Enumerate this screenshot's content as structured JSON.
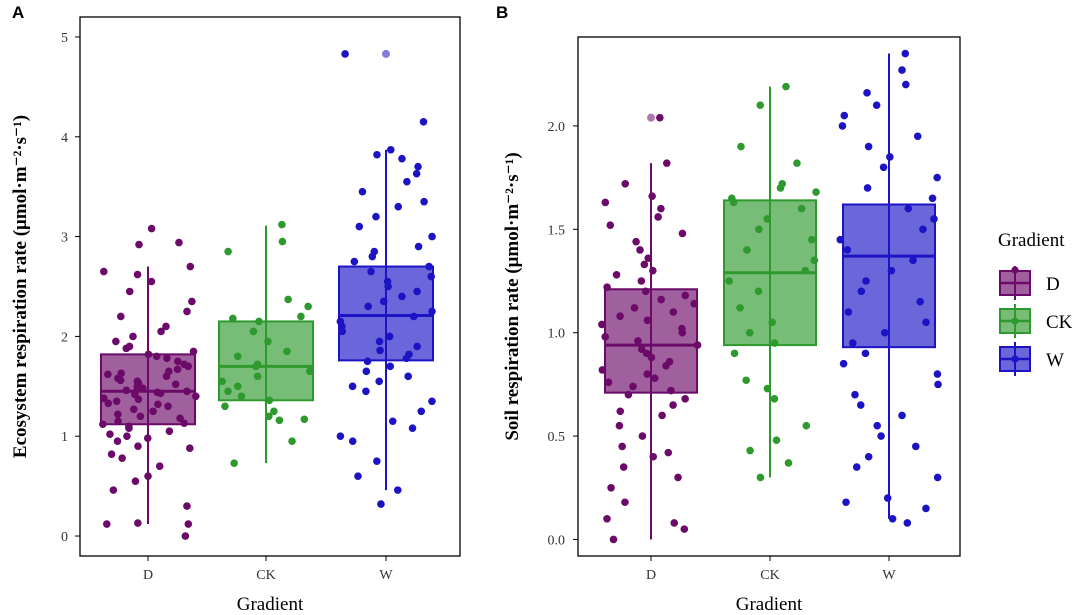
{
  "colors": {
    "D": "#6b0a68",
    "CK": "#2e9a2e",
    "W": "#1c14c4",
    "frame": "#000000",
    "background": "#ffffff"
  },
  "chart_data": [
    {
      "type": "box",
      "panel_label": "A",
      "title": "",
      "xlabel": "Gradient",
      "ylabel": "Ecosystem respiration rate (μmol·m⁻²·s⁻¹)",
      "categories": [
        "D",
        "CK",
        "W"
      ],
      "yticks": [
        0,
        1,
        2,
        3,
        4,
        5
      ],
      "yticklabels": [
        "0",
        "1",
        "2",
        "3",
        "4",
        "5"
      ],
      "ylim": [
        0,
        5
      ],
      "boxes": [
        {
          "group": "D",
          "whisker_low": 0.12,
          "q1": 1.12,
          "median": 1.45,
          "q3": 1.82,
          "whisker_high": 2.7
        },
        {
          "group": "CK",
          "whisker_low": 0.73,
          "q1": 1.36,
          "median": 1.7,
          "q3": 2.15,
          "whisker_high": 3.11
        },
        {
          "group": "W",
          "whisker_low": 0.46,
          "q1": 1.76,
          "median": 2.21,
          "q3": 2.7,
          "whisker_high": 3.87
        }
      ],
      "outliers": [
        {
          "group": "W",
          "y": 4.83
        }
      ],
      "points": {
        "D": [
          0.0,
          0.12,
          0.12,
          0.13,
          0.3,
          0.46,
          0.55,
          0.6,
          0.7,
          0.78,
          0.82,
          0.88,
          0.9,
          0.95,
          0.98,
          1.0,
          1.02,
          1.05,
          1.08,
          1.1,
          1.12,
          1.13,
          1.15,
          1.18,
          1.2,
          1.22,
          1.25,
          1.27,
          1.3,
          1.32,
          1.33,
          1.35,
          1.37,
          1.38,
          1.4,
          1.42,
          1.43,
          1.44,
          1.45,
          1.46,
          1.47,
          1.48,
          1.5,
          1.52,
          1.53,
          1.55,
          1.56,
          1.58,
          1.6,
          1.62,
          1.63,
          1.65,
          1.67,
          1.7,
          1.72,
          1.75,
          1.78,
          1.8,
          1.82,
          1.85,
          1.88,
          1.9,
          1.95,
          2.0,
          2.05,
          2.1,
          2.2,
          2.25,
          2.35,
          2.45,
          2.55,
          2.62,
          2.65,
          2.7,
          2.92,
          2.94,
          3.08
        ],
        "CK": [
          0.73,
          0.95,
          1.16,
          1.17,
          1.2,
          1.25,
          1.3,
          1.36,
          1.4,
          1.45,
          1.5,
          1.55,
          1.6,
          1.65,
          1.7,
          1.72,
          1.8,
          1.85,
          1.95,
          2.05,
          2.15,
          2.18,
          2.2,
          2.3,
          2.37,
          2.85,
          2.95,
          3.12
        ],
        "W": [
          0.32,
          0.46,
          0.6,
          0.75,
          0.95,
          1.0,
          1.08,
          1.15,
          1.25,
          1.35,
          1.45,
          1.5,
          1.55,
          1.6,
          1.65,
          1.7,
          1.75,
          1.78,
          1.82,
          1.86,
          1.9,
          1.95,
          2.0,
          2.05,
          2.1,
          2.15,
          2.2,
          2.25,
          2.3,
          2.35,
          2.4,
          2.45,
          2.5,
          2.55,
          2.6,
          2.65,
          2.7,
          2.75,
          2.8,
          2.85,
          2.9,
          3.0,
          3.1,
          3.2,
          3.3,
          3.35,
          3.45,
          3.55,
          3.63,
          3.7,
          3.78,
          3.82,
          3.87,
          4.15,
          4.83
        ]
      }
    },
    {
      "type": "box",
      "panel_label": "B",
      "title": "",
      "xlabel": "Gradient",
      "ylabel": "Soil respiration rate (μmol·m⁻²·s⁻¹)",
      "categories": [
        "D",
        "CK",
        "W"
      ],
      "yticks": [
        0.0,
        0.5,
        1.0,
        1.5,
        2.0
      ],
      "yticklabels": [
        "0.0",
        "0.5",
        "1.0",
        "1.5",
        "2.0"
      ],
      "ylim": [
        -0.08,
        2.43
      ],
      "boxes": [
        {
          "group": "D",
          "whisker_low": 0.0,
          "q1": 0.71,
          "median": 0.94,
          "q3": 1.21,
          "whisker_high": 1.82
        },
        {
          "group": "CK",
          "whisker_low": 0.3,
          "q1": 0.94,
          "median": 1.29,
          "q3": 1.64,
          "whisker_high": 2.19
        },
        {
          "group": "W",
          "whisker_low": 0.1,
          "q1": 0.93,
          "median": 1.37,
          "q3": 1.62,
          "whisker_high": 2.35
        }
      ],
      "outliers": [
        {
          "group": "D",
          "y": 2.04
        }
      ],
      "points": {
        "D": [
          0.0,
          0.05,
          0.08,
          0.1,
          0.18,
          0.25,
          0.3,
          0.35,
          0.4,
          0.42,
          0.45,
          0.5,
          0.55,
          0.6,
          0.62,
          0.65,
          0.68,
          0.7,
          0.72,
          0.74,
          0.76,
          0.78,
          0.8,
          0.82,
          0.84,
          0.86,
          0.88,
          0.9,
          0.92,
          0.94,
          0.96,
          0.98,
          1.0,
          1.02,
          1.04,
          1.06,
          1.08,
          1.1,
          1.12,
          1.14,
          1.16,
          1.18,
          1.2,
          1.22,
          1.25,
          1.28,
          1.3,
          1.33,
          1.36,
          1.4,
          1.44,
          1.48,
          1.52,
          1.56,
          1.6,
          1.63,
          1.66,
          1.72,
          1.82,
          2.04
        ],
        "CK": [
          0.3,
          0.37,
          0.43,
          0.48,
          0.55,
          0.68,
          0.73,
          0.77,
          0.9,
          0.95,
          1.0,
          1.05,
          1.12,
          1.2,
          1.25,
          1.3,
          1.35,
          1.4,
          1.45,
          1.5,
          1.55,
          1.6,
          1.63,
          1.65,
          1.68,
          1.7,
          1.72,
          1.82,
          1.9,
          2.1,
          2.19
        ],
        "W": [
          0.08,
          0.1,
          0.15,
          0.18,
          0.2,
          0.3,
          0.35,
          0.4,
          0.45,
          0.5,
          0.55,
          0.6,
          0.65,
          0.7,
          0.75,
          0.8,
          0.85,
          0.9,
          0.95,
          1.0,
          1.05,
          1.1,
          1.15,
          1.2,
          1.25,
          1.3,
          1.35,
          1.4,
          1.45,
          1.5,
          1.55,
          1.6,
          1.65,
          1.7,
          1.75,
          1.8,
          1.85,
          1.9,
          1.95,
          2.0,
          2.05,
          2.1,
          2.16,
          2.2,
          2.27,
          2.35
        ]
      }
    }
  ],
  "legend": {
    "title": "Gradient",
    "items": [
      "D",
      "CK",
      "W"
    ],
    "placement": "right"
  }
}
